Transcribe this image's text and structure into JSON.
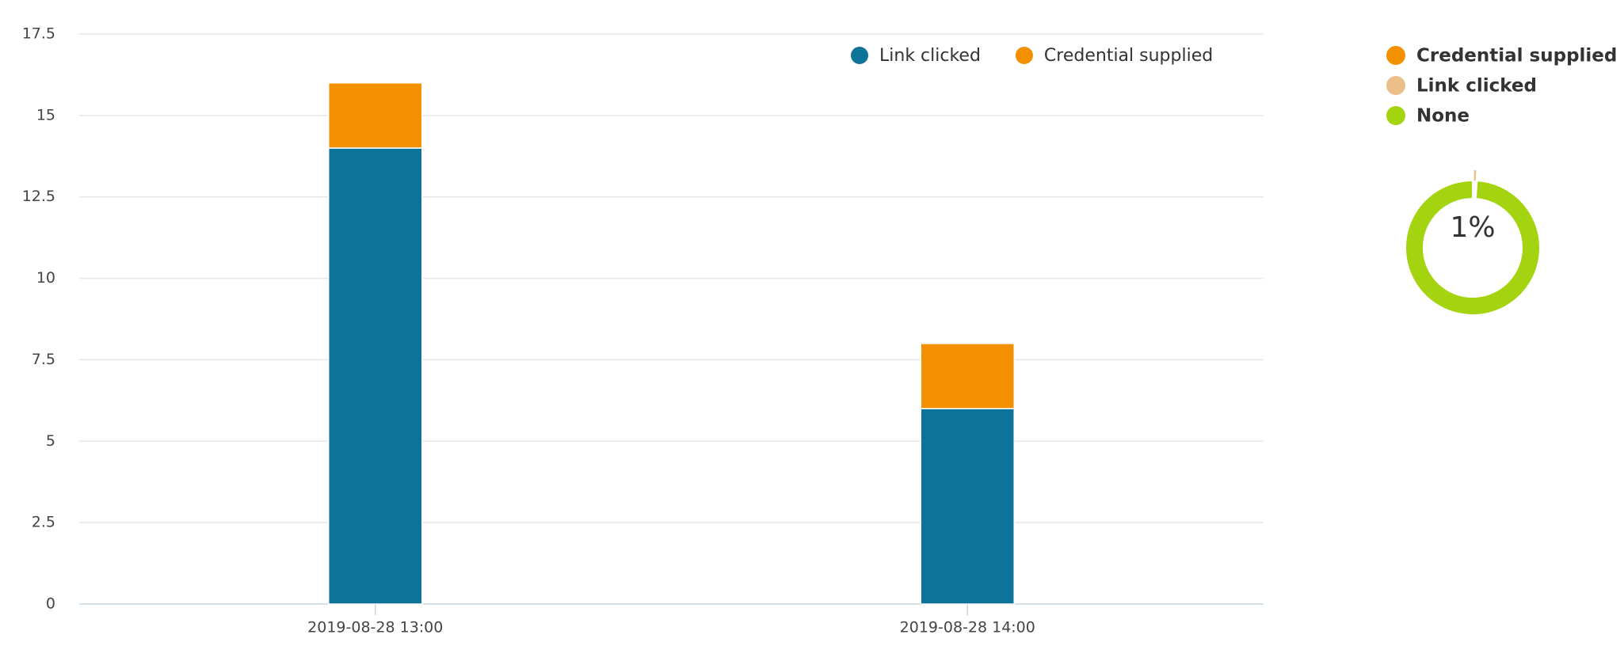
{
  "chart_data": [
    {
      "type": "bar",
      "stacked": true,
      "categories": [
        "2019-08-28 13:00",
        "2019-08-28 14:00"
      ],
      "series": [
        {
          "name": "Link clicked",
          "color": "#0e7399",
          "values": [
            14,
            6
          ]
        },
        {
          "name": "Credential supplied",
          "color": "#f39000",
          "values": [
            2,
            2
          ]
        }
      ],
      "ylim": [
        0,
        17.5
      ],
      "yticks": [
        0,
        2.5,
        5,
        7.5,
        10,
        12.5,
        15,
        17.5
      ],
      "grid": true,
      "legend": "top-right"
    },
    {
      "type": "donut",
      "categories": [
        "Credential supplied",
        "Link clicked",
        "None"
      ],
      "values": [
        0,
        1,
        99
      ],
      "value_labels": [
        null,
        "1%",
        null
      ],
      "colors": [
        "#f39000",
        "#ebbe8a",
        "#a4d40f"
      ],
      "legend": "top-left"
    }
  ]
}
